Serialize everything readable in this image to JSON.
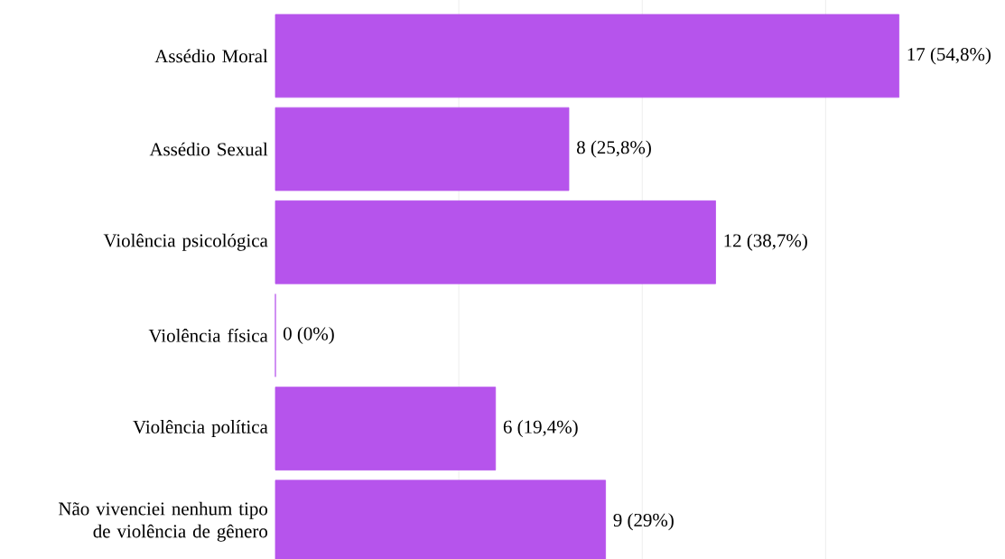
{
  "chart_data": {
    "type": "bar",
    "orientation": "horizontal",
    "categories": [
      "Assédio Moral",
      "Assédio Sexual",
      "Violência psicológica",
      "Violência física",
      "Violência política",
      "Não vivenciei nenhum tipo de violência de gênero"
    ],
    "values": [
      17,
      8,
      12,
      0,
      6,
      9
    ],
    "value_labels": [
      "17  (54,8%)",
      "8  (25,8%)",
      "12  (38,7%)",
      "0  (0%)",
      "6  (19,4%)",
      "9  (29%)"
    ],
    "color": "#b654ec",
    "xticks": [
      {
        "value": 5,
        "label": null
      },
      {
        "value": 10,
        "label": null
      },
      {
        "value": 15,
        "label": null
      }
    ],
    "grid": "x",
    "tick_labels": "y"
  }
}
